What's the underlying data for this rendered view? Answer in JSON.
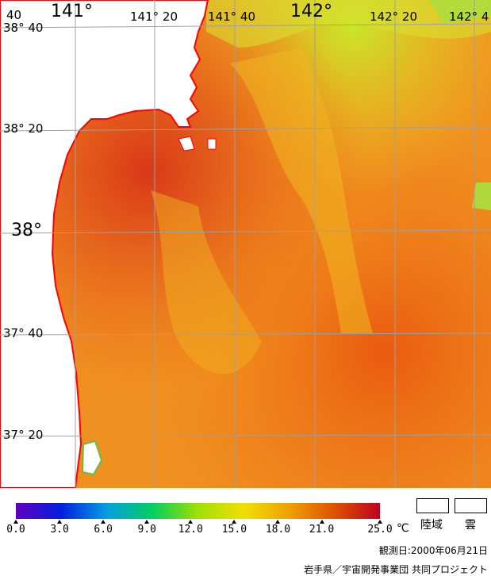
{
  "map": {
    "lon_labels": [
      "141°",
      "141° 20",
      "141° 40",
      "142°",
      "142° 20",
      "142° 4"
    ],
    "corner_label": "40",
    "lat_labels": [
      "38° 40",
      "38° 20",
      "38°",
      "37° 40",
      "37° 20"
    ],
    "colors": {
      "land": "#ffffff",
      "coast": "#ff0000",
      "grid": "#a0a0a0",
      "warm": "#e8401a",
      "mid": "#f08a1c",
      "cool": "#f0c020",
      "cold": "#b8e030"
    }
  },
  "color_scale": {
    "tick_labels": [
      "0.0",
      "3.0",
      "6.0",
      "9.0",
      "12.0",
      "15.0",
      "18.0",
      "21.0",
      "25.0"
    ],
    "tick_values": [
      0,
      3,
      6,
      9,
      12,
      15,
      18,
      21,
      25
    ],
    "range": [
      0,
      25
    ],
    "unit": "℃",
    "stops": [
      "#6000c0",
      "#0020e0",
      "#00a0e0",
      "#00d060",
      "#a0e000",
      "#f0e000",
      "#f0a000",
      "#e05000",
      "#c00020"
    ]
  },
  "legend": {
    "land_label": "陸域",
    "cloud_label": "雲"
  },
  "observation_date": "観測日:2000年06月21日",
  "credit": "岩手県／宇宙開発事業団 共同プロジェクト"
}
